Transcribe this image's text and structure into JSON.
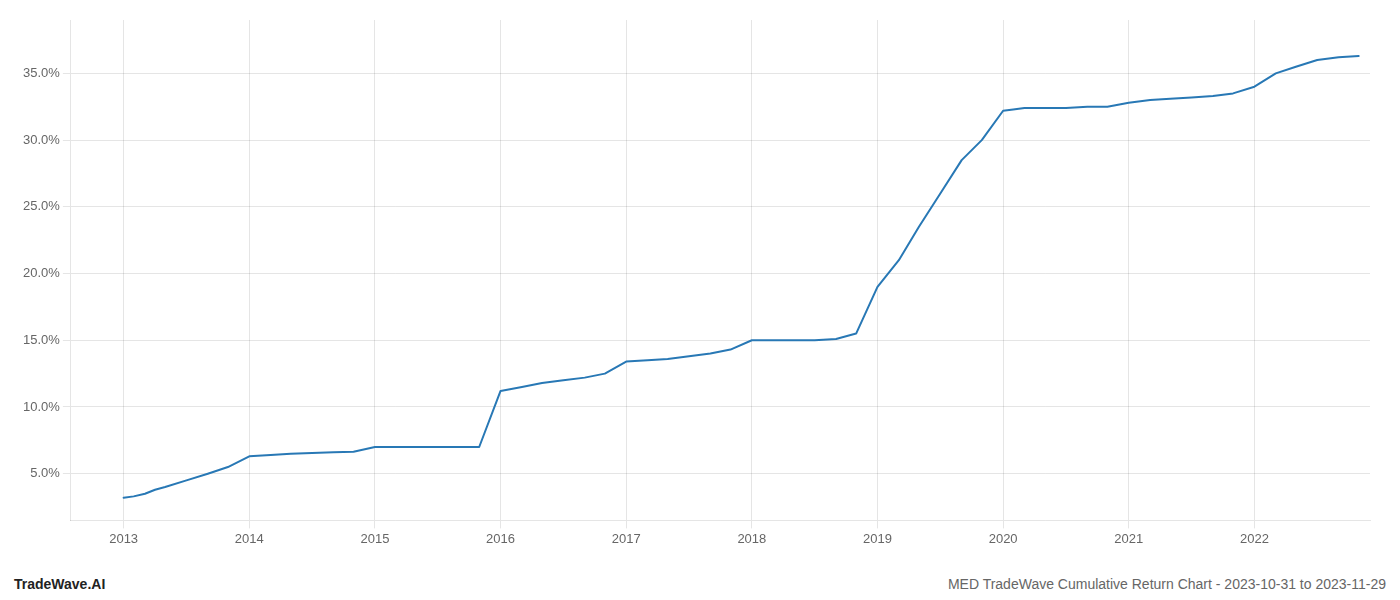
{
  "chart_data": {
    "type": "line",
    "x": [
      2013.0,
      2013.08,
      2013.17,
      2013.25,
      2013.33,
      2013.5,
      2013.67,
      2013.83,
      2014.0,
      2014.17,
      2014.33,
      2014.5,
      2014.67,
      2014.83,
      2015.0,
      2015.17,
      2015.33,
      2015.5,
      2015.67,
      2015.83,
      2016.0,
      2016.17,
      2016.33,
      2016.5,
      2016.67,
      2016.83,
      2017.0,
      2017.17,
      2017.33,
      2017.5,
      2017.67,
      2017.83,
      2018.0,
      2018.17,
      2018.33,
      2018.5,
      2018.67,
      2018.83,
      2019.0,
      2019.17,
      2019.33,
      2019.5,
      2019.67,
      2019.83,
      2020.0,
      2020.08,
      2020.17,
      2020.25,
      2020.33,
      2020.5,
      2020.67,
      2020.83,
      2021.0,
      2021.17,
      2021.33,
      2021.5,
      2021.67,
      2021.83,
      2022.0,
      2022.17,
      2022.33,
      2022.5,
      2022.67,
      2022.83
    ],
    "values": [
      3.2,
      3.3,
      3.5,
      3.8,
      4.0,
      4.5,
      5.0,
      5.5,
      6.3,
      6.4,
      6.5,
      6.55,
      6.6,
      6.65,
      7.0,
      7.0,
      7.0,
      7.0,
      7.0,
      7.0,
      11.2,
      11.5,
      11.8,
      12.0,
      12.2,
      12.5,
      13.4,
      13.5,
      13.6,
      13.8,
      14.0,
      14.3,
      15.0,
      15.0,
      15.0,
      15.0,
      15.1,
      15.5,
      19.0,
      21.0,
      23.5,
      26.0,
      28.5,
      30.0,
      32.2,
      32.3,
      32.4,
      32.4,
      32.4,
      32.4,
      32.5,
      32.5,
      32.8,
      33.0,
      33.1,
      33.2,
      33.3,
      33.5,
      34.0,
      35.0,
      35.5,
      36.0,
      36.2,
      36.3
    ],
    "color": "#2878b5",
    "xlim": [
      2012.58,
      2022.92
    ],
    "xticks": [
      2013,
      2014,
      2015,
      2016,
      2017,
      2018,
      2019,
      2020,
      2021,
      2022
    ],
    "ylim": [
      1.5,
      39.0
    ],
    "yticks": [
      {
        "value": 5.0,
        "label": "5.0%"
      },
      {
        "value": 10.0,
        "label": "10.0%"
      },
      {
        "value": 15.0,
        "label": "15.0%"
      },
      {
        "value": 20.0,
        "label": "20.0%"
      },
      {
        "value": 25.0,
        "label": "25.0%"
      },
      {
        "value": 30.0,
        "label": "30.0%"
      },
      {
        "value": 35.0,
        "label": "35.0%"
      }
    ],
    "grid": true,
    "annotations": [
      "TradeWave.AI",
      "MED TradeWave Cumulative Return Chart - 2023-10-31 to 2023-11-29"
    ]
  }
}
